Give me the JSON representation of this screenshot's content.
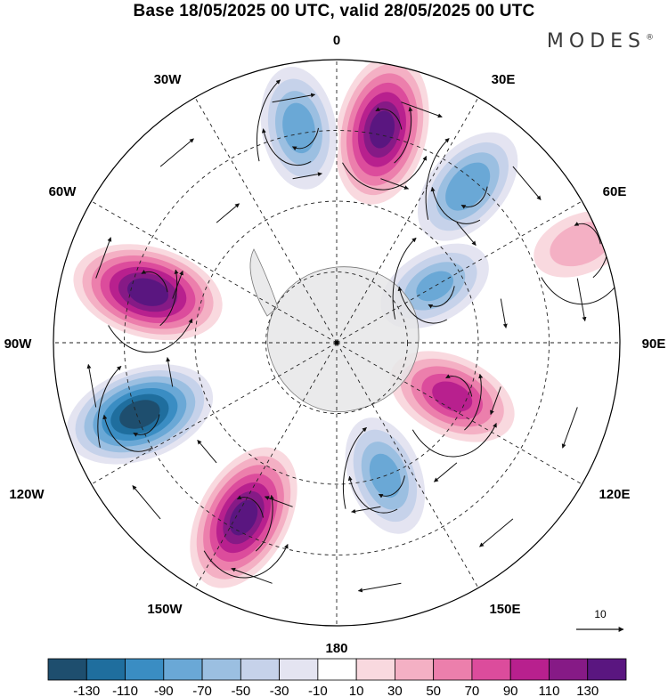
{
  "title": "Base 18/05/2025 00 UTC, valid 28/05/2025 00 UTC",
  "brand": {
    "text": "MODES",
    "mark": "®"
  },
  "longitude_labels": {
    "n": "0",
    "nw30": "30W",
    "ne30": "30E",
    "w60": "60W",
    "e60": "60E",
    "w90": "90W",
    "e90": "90E",
    "w120": "120W",
    "e120": "120E",
    "w150": "150W",
    "e150": "150E",
    "s": "180"
  },
  "vector_scale": {
    "label": "10"
  },
  "colorbar": {
    "colors": [
      "#1e4e6e",
      "#1f6e9e",
      "#3a8dc3",
      "#6aa8d6",
      "#9bbfe1",
      "#c6d2ea",
      "#e4e4f1",
      "#ffffff",
      "#f9d9df",
      "#f4b0c4",
      "#ec7fac",
      "#dc4c9c",
      "#b8208e",
      "#861a86",
      "#5a1680"
    ],
    "tick_labels": [
      "-130",
      "-110",
      "-90",
      "-70",
      "-50",
      "-30",
      "-10",
      "10",
      "30",
      "50",
      "70",
      "90",
      "110",
      "130"
    ]
  },
  "anomaly_centers": [
    {
      "name": "positive",
      "lon": 12,
      "r": 0.77,
      "value": 135
    },
    {
      "name": "negative",
      "lon": 40,
      "r": 0.72,
      "value": -85
    },
    {
      "name": "negative",
      "lon": -10,
      "r": 0.77,
      "value": -80
    },
    {
      "name": "positive",
      "lon": -75,
      "r": 0.69,
      "value": 140
    },
    {
      "name": "negative",
      "lon": -110,
      "r": 0.74,
      "value": -140
    },
    {
      "name": "positive",
      "lon": -152,
      "r": 0.7,
      "value": 135
    },
    {
      "name": "negative",
      "lon": 160,
      "r": 0.5,
      "value": -75
    },
    {
      "name": "positive",
      "lon": 115,
      "r": 0.45,
      "value": 95
    },
    {
      "name": "negative",
      "lon": 60,
      "r": 0.4,
      "value": -70
    },
    {
      "name": "positive",
      "lon": 68,
      "r": 0.93,
      "value": 40
    }
  ]
}
